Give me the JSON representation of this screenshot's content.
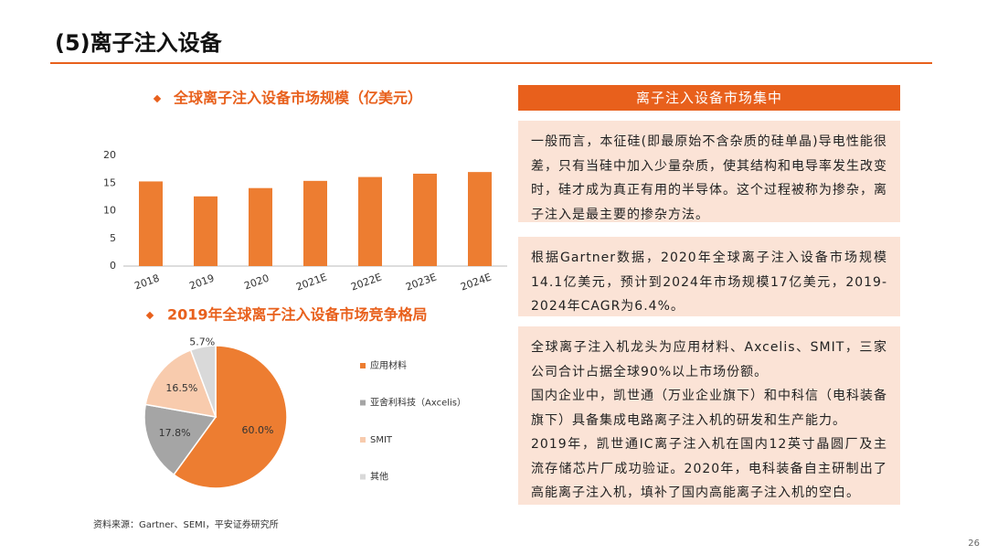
{
  "header": {
    "title": "(5)离子注入设备"
  },
  "chart_data": [
    {
      "type": "bar",
      "title": "全球离子注入设备市场规模（亿美元）",
      "categories": [
        "2018",
        "2019",
        "2020",
        "2021E",
        "2022E",
        "2023E",
        "2024E"
      ],
      "values": [
        15.3,
        12.6,
        14.1,
        15.4,
        16.1,
        16.7,
        17
      ],
      "color": "#ed7d31",
      "ylim": [
        0,
        20
      ],
      "yticks": [
        0,
        5,
        10,
        15,
        20
      ],
      "grid": false
    },
    {
      "type": "pie",
      "title": "2019年全球离子注入设备市场竞争格局",
      "categories": [
        "应用材料",
        "亚舍利科技（Axcelis）",
        "SMIT",
        "其他"
      ],
      "values": [
        60.0,
        17.8,
        16.5,
        5.7
      ],
      "value_labels": [
        "60.0%",
        "17.8%",
        "16.5%",
        "5.7%"
      ],
      "colors": [
        "#ed7d31",
        "#a5a5a5",
        "#f8cbad",
        "#d9d9d9"
      ],
      "legend": "right"
    }
  ],
  "panel": {
    "title": "离子注入设备市场集中",
    "boxes": [
      [
        "一般而言，本征硅(即最原始不含杂质的硅单晶)导电性能很差，只有当硅中加入少量杂质，使其结构和电导率发生改变时，硅才成为真正有用的半导体。这个过程被称为掺杂，离子注入是最主要的掺杂方法。"
      ],
      [
        "根据Gartner数据，2020年全球离子注入设备市场规模14.1亿美元，预计到2024年市场规模17亿美元，2019-2024年CAGR为6.4%。"
      ],
      [
        "全球离子注入机龙头为应用材料、Axcelis、SMIT，三家公司合计占据全球90%以上市场份额。",
        "国内企业中，凯世通（万业企业旗下）和中科信（电科装备旗下）具备集成电路离子注入机的研发和生产能力。",
        "2019年，凯世通IC离子注入机在国内12英寸晶圆厂及主流存储芯片厂成功验证。2020年，电科装备自主研制出了高能离子注入机，填补了国内高能离子注入机的空白。"
      ]
    ]
  },
  "footer": {
    "source": "资料来源：Gartner、SEMI，平安证券研究所",
    "page": "26"
  }
}
